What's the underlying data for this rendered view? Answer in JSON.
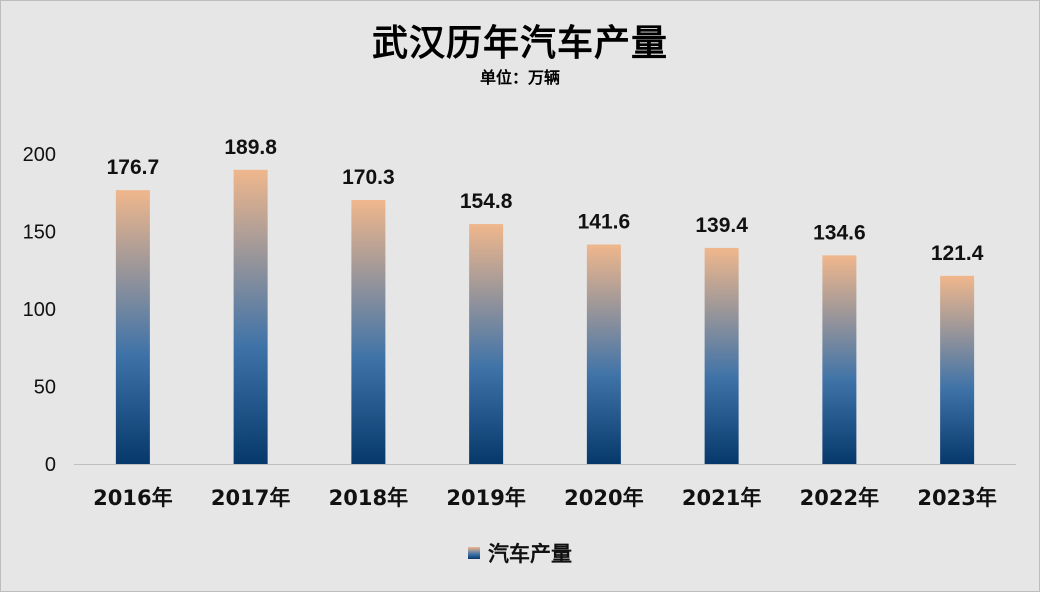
{
  "chart_data": {
    "type": "bar",
    "title": "武汉历年汽车产量",
    "subtitle": "单位：万辆",
    "categories": [
      "2016年",
      "2017年",
      "2018年",
      "2019年",
      "2020年",
      "2021年",
      "2022年",
      "2023年"
    ],
    "series": [
      {
        "name": "汽车产量",
        "values": [
          176.7,
          189.8,
          170.3,
          154.8,
          141.6,
          139.4,
          134.6,
          121.4
        ],
        "value_labels": [
          "176.7",
          "189.8",
          "170.3",
          "154.8",
          "141.6",
          "139.4",
          "134.6",
          "121.4"
        ]
      }
    ],
    "yticks": [
      "0",
      "50",
      "100",
      "150",
      "200"
    ],
    "ylim": [
      0,
      200
    ],
    "grid": false,
    "legend": "bottom",
    "colors": {
      "bar_top": "#f0b78c",
      "bar_mid": "#3f73a8",
      "bar_bottom": "#06386b",
      "background": "#e6e6e6"
    }
  }
}
